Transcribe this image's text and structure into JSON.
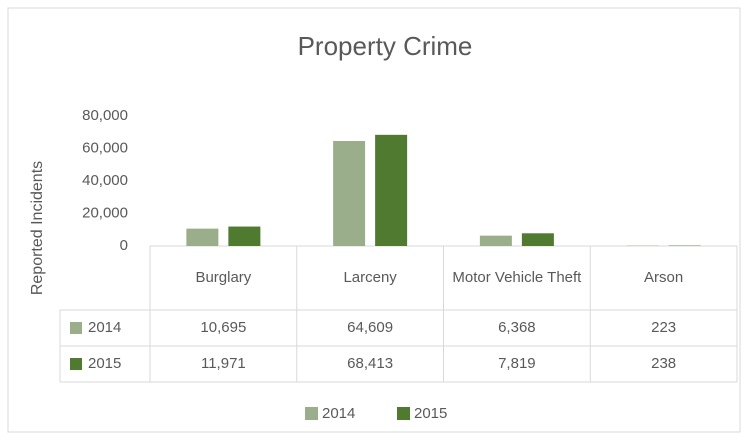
{
  "chart_data": {
    "type": "bar",
    "title": "Property Crime",
    "y_label": "Reported Incidents",
    "categories": [
      "Burglary",
      "Larceny",
      "Motor Vehicle Theft",
      "Arson"
    ],
    "series": [
      {
        "name": "2014",
        "color": "#9aae8c",
        "values": [
          10695,
          64609,
          6368,
          223
        ],
        "value_labels": [
          "10,695",
          "64,609",
          "6,368",
          "223"
        ]
      },
      {
        "name": "2015",
        "color": "#4f7a2f",
        "values": [
          11971,
          68413,
          7819,
          238
        ],
        "value_labels": [
          "11,971",
          "68,413",
          "7,819",
          "238"
        ]
      }
    ],
    "ylim": [
      0,
      80000
    ],
    "yticks": [
      0,
      {
        "value": 20000,
        "label": "20,000"
      },
      {
        "value": 40000,
        "label": "40,000"
      },
      {
        "value": 60000,
        "label": "60,000"
      },
      {
        "value": 80000,
        "label": "80,000"
      }
    ],
    "grid": false,
    "legend": "bottom",
    "data_table": true
  }
}
